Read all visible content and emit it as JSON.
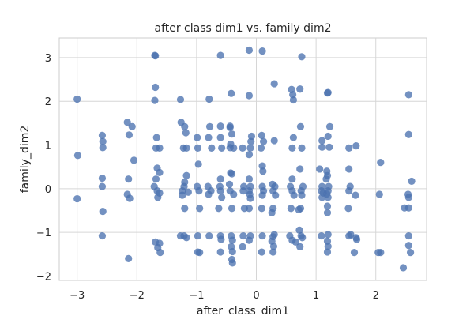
{
  "chart_data": {
    "type": "scatter",
    "title": "after class dim1 vs. family dim2",
    "xlabel": "after_class_dim1",
    "ylabel": "family_dim2",
    "xlim": [
      -3.3,
      2.85
    ],
    "ylim": [
      -2.1,
      3.45
    ],
    "x_ticks": [
      -3,
      -2,
      -1,
      0,
      1,
      2
    ],
    "y_ticks": [
      -2,
      -1,
      0,
      1,
      2,
      3
    ],
    "grid": true,
    "marker_color": "#4c72b0",
    "points": [
      {
        "x": -3.0,
        "y": 2.05
      },
      {
        "x": -2.99,
        "y": 0.76
      },
      {
        "x": -3.0,
        "y": -0.23
      },
      {
        "x": -2.58,
        "y": 1.22
      },
      {
        "x": -2.57,
        "y": 1.08
      },
      {
        "x": -2.57,
        "y": 0.94
      },
      {
        "x": -2.58,
        "y": 0.24
      },
      {
        "x": -2.58,
        "y": 0.05
      },
      {
        "x": -2.57,
        "y": -0.52
      },
      {
        "x": -2.58,
        "y": -1.08
      },
      {
        "x": -2.16,
        "y": 1.52
      },
      {
        "x": -2.08,
        "y": 1.42
      },
      {
        "x": -2.13,
        "y": 1.23
      },
      {
        "x": -2.05,
        "y": 0.65
      },
      {
        "x": -2.14,
        "y": 0.22
      },
      {
        "x": -2.16,
        "y": -0.13
      },
      {
        "x": -2.12,
        "y": -0.22
      },
      {
        "x": -2.14,
        "y": -1.6
      },
      {
        "x": -1.7,
        "y": 3.05
      },
      {
        "x": -1.69,
        "y": 3.04
      },
      {
        "x": -1.69,
        "y": 2.32
      },
      {
        "x": -1.7,
        "y": 2.02
      },
      {
        "x": -1.67,
        "y": 1.17
      },
      {
        "x": -1.62,
        "y": 0.93
      },
      {
        "x": -1.68,
        "y": 0.93
      },
      {
        "x": -1.66,
        "y": 0.47
      },
      {
        "x": -1.62,
        "y": 0.37
      },
      {
        "x": -1.68,
        "y": 0.22
      },
      {
        "x": -1.71,
        "y": 0.05
      },
      {
        "x": -1.66,
        "y": -0.05
      },
      {
        "x": -1.62,
        "y": -0.1
      },
      {
        "x": -1.65,
        "y": -0.2
      },
      {
        "x": -1.69,
        "y": -1.22
      },
      {
        "x": -1.62,
        "y": -1.25
      },
      {
        "x": -1.65,
        "y": -1.35
      },
      {
        "x": -1.61,
        "y": -1.46
      },
      {
        "x": -1.27,
        "y": 2.04
      },
      {
        "x": -1.26,
        "y": 1.52
      },
      {
        "x": -1.2,
        "y": 1.42
      },
      {
        "x": -1.18,
        "y": 1.28
      },
      {
        "x": -1.22,
        "y": 0.93
      },
      {
        "x": -1.17,
        "y": 0.93
      },
      {
        "x": -1.17,
        "y": 0.3
      },
      {
        "x": -1.2,
        "y": 0.15
      },
      {
        "x": -1.21,
        "y": 0.05
      },
      {
        "x": -1.24,
        "y": -0.05
      },
      {
        "x": -1.14,
        "y": -0.08
      },
      {
        "x": -1.24,
        "y": -0.15
      },
      {
        "x": -1.2,
        "y": -0.45
      },
      {
        "x": -1.27,
        "y": -1.08
      },
      {
        "x": -1.21,
        "y": -1.08
      },
      {
        "x": -1.17,
        "y": -1.12
      },
      {
        "x": -0.99,
        "y": 1.17
      },
      {
        "x": -0.98,
        "y": 0.93
      },
      {
        "x": -0.97,
        "y": 0.56
      },
      {
        "x": -0.99,
        "y": 0.05
      },
      {
        "x": -0.96,
        "y": -0.05
      },
      {
        "x": -0.95,
        "y": -0.45
      },
      {
        "x": -0.98,
        "y": -1.08
      },
      {
        "x": -0.98,
        "y": -1.45
      },
      {
        "x": -0.95,
        "y": -1.46
      },
      {
        "x": -0.79,
        "y": 2.05
      },
      {
        "x": -0.78,
        "y": 1.42
      },
      {
        "x": -0.8,
        "y": 1.17
      },
      {
        "x": -0.75,
        "y": 0.93
      },
      {
        "x": -0.81,
        "y": 0.05
      },
      {
        "x": -0.76,
        "y": -0.05
      },
      {
        "x": -0.8,
        "y": -0.13
      },
      {
        "x": -0.79,
        "y": -1.08
      },
      {
        "x": -0.6,
        "y": 3.05
      },
      {
        "x": -0.6,
        "y": 1.43
      },
      {
        "x": -0.6,
        "y": 1.17
      },
      {
        "x": -0.58,
        "y": 0.93
      },
      {
        "x": -0.6,
        "y": 0.22
      },
      {
        "x": -0.61,
        "y": 0.05
      },
      {
        "x": -0.6,
        "y": -0.05
      },
      {
        "x": -0.58,
        "y": -0.2
      },
      {
        "x": -0.63,
        "y": -0.45
      },
      {
        "x": -0.6,
        "y": -1.08
      },
      {
        "x": -0.59,
        "y": -1.16
      },
      {
        "x": -0.6,
        "y": -1.45
      },
      {
        "x": -0.44,
        "y": 1.43
      },
      {
        "x": -0.41,
        "y": 1.25
      },
      {
        "x": -0.38,
        "y": 0.93
      },
      {
        "x": -0.45,
        "y": 0.1
      },
      {
        "x": -0.44,
        "y": -0.05
      },
      {
        "x": -0.38,
        "y": -0.13
      },
      {
        "x": -0.41,
        "y": -0.45
      },
      {
        "x": -0.42,
        "y": -1.08
      },
      {
        "x": -0.4,
        "y": -1.18
      },
      {
        "x": -0.42,
        "y": -1.33
      },
      {
        "x": -0.4,
        "y": -1.44
      },
      {
        "x": -0.41,
        "y": -1.62
      },
      {
        "x": -0.4,
        "y": -1.7
      },
      {
        "x": -0.42,
        "y": 2.18
      },
      {
        "x": -0.43,
        "y": 0.36
      },
      {
        "x": -0.41,
        "y": 0.34
      },
      {
        "x": -0.43,
        "y": 1.02
      },
      {
        "x": -0.44,
        "y": 1.4
      },
      {
        "x": -0.44,
        "y": 0.94
      },
      {
        "x": -0.23,
        "y": 0.93
      },
      {
        "x": -0.21,
        "y": 0.05
      },
      {
        "x": -0.22,
        "y": -0.05
      },
      {
        "x": -0.2,
        "y": -0.45
      },
      {
        "x": -0.22,
        "y": -1.08
      },
      {
        "x": -0.23,
        "y": -1.33
      },
      {
        "x": -0.12,
        "y": 3.17
      },
      {
        "x": -0.12,
        "y": 2.13
      },
      {
        "x": -0.08,
        "y": 1.2
      },
      {
        "x": -0.09,
        "y": 1.08
      },
      {
        "x": -0.1,
        "y": 0.93
      },
      {
        "x": -0.12,
        "y": 0.78
      },
      {
        "x": -0.12,
        "y": 0.22
      },
      {
        "x": -0.1,
        "y": 0.05
      },
      {
        "x": -0.12,
        "y": -0.05
      },
      {
        "x": -0.11,
        "y": -0.13
      },
      {
        "x": -0.1,
        "y": -0.22
      },
      {
        "x": -0.12,
        "y": -0.45
      },
      {
        "x": -0.1,
        "y": -1.08
      },
      {
        "x": -0.12,
        "y": -1.18
      },
      {
        "x": 0.1,
        "y": 3.15
      },
      {
        "x": 0.09,
        "y": 1.22
      },
      {
        "x": 0.12,
        "y": 1.08
      },
      {
        "x": 0.08,
        "y": 0.93
      },
      {
        "x": 0.1,
        "y": 0.52
      },
      {
        "x": 0.11,
        "y": 0.4
      },
      {
        "x": 0.1,
        "y": 0.05
      },
      {
        "x": 0.12,
        "y": -0.05
      },
      {
        "x": 0.1,
        "y": -0.15
      },
      {
        "x": 0.09,
        "y": -0.45
      },
      {
        "x": 0.1,
        "y": -1.08
      },
      {
        "x": 0.09,
        "y": -1.45
      },
      {
        "x": 0.3,
        "y": 2.4
      },
      {
        "x": 0.3,
        "y": 1.1
      },
      {
        "x": 0.27,
        "y": 0.1
      },
      {
        "x": 0.31,
        "y": 0.05
      },
      {
        "x": 0.28,
        "y": -0.05
      },
      {
        "x": 0.32,
        "y": -0.15
      },
      {
        "x": 0.28,
        "y": -0.45
      },
      {
        "x": 0.26,
        "y": -0.55
      },
      {
        "x": 0.3,
        "y": -1.05
      },
      {
        "x": 0.28,
        "y": -1.1
      },
      {
        "x": 0.26,
        "y": -1.2
      },
      {
        "x": 0.29,
        "y": -1.32
      },
      {
        "x": 0.28,
        "y": -1.45
      },
      {
        "x": 0.59,
        "y": 2.27
      },
      {
        "x": 0.61,
        "y": 2.15
      },
      {
        "x": 0.62,
        "y": 2.03
      },
      {
        "x": 0.62,
        "y": 1.17
      },
      {
        "x": 0.6,
        "y": 0.93
      },
      {
        "x": 0.6,
        "y": 0.22
      },
      {
        "x": 0.57,
        "y": 0.05
      },
      {
        "x": 0.6,
        "y": -0.05
      },
      {
        "x": 0.63,
        "y": -0.15
      },
      {
        "x": 0.58,
        "y": -0.45
      },
      {
        "x": 0.56,
        "y": -1.08
      },
      {
        "x": 0.6,
        "y": -1.18
      },
      {
        "x": 0.66,
        "y": -1.22
      },
      {
        "x": 0.76,
        "y": 3.02
      },
      {
        "x": 0.73,
        "y": 2.28
      },
      {
        "x": 0.74,
        "y": 1.42
      },
      {
        "x": 0.76,
        "y": 0.93
      },
      {
        "x": 0.73,
        "y": 0.45
      },
      {
        "x": 0.78,
        "y": 0.05
      },
      {
        "x": 0.75,
        "y": -0.05
      },
      {
        "x": 0.76,
        "y": -0.15
      },
      {
        "x": 0.74,
        "y": -0.45
      },
      {
        "x": 0.71,
        "y": -0.48
      },
      {
        "x": 0.72,
        "y": -0.95
      },
      {
        "x": 0.75,
        "y": -1.08
      },
      {
        "x": 0.77,
        "y": -1.12
      },
      {
        "x": 0.73,
        "y": -1.33
      },
      {
        "x": 1.1,
        "y": 1.1
      },
      {
        "x": 1.1,
        "y": 0.95
      },
      {
        "x": 1.06,
        "y": 0.45
      },
      {
        "x": 1.1,
        "y": 0.05
      },
      {
        "x": 1.09,
        "y": -0.05
      },
      {
        "x": 1.12,
        "y": -0.1
      },
      {
        "x": 1.1,
        "y": -0.2
      },
      {
        "x": 1.09,
        "y": -1.08
      },
      {
        "x": 1.2,
        "y": 2.2
      },
      {
        "x": 1.19,
        "y": 2.19
      },
      {
        "x": 1.23,
        "y": 1.42
      },
      {
        "x": 1.2,
        "y": 1.2
      },
      {
        "x": 1.22,
        "y": 0.95
      },
      {
        "x": 1.18,
        "y": 0.4
      },
      {
        "x": 1.19,
        "y": 0.3
      },
      {
        "x": 1.17,
        "y": 0.22
      },
      {
        "x": 1.21,
        "y": 0.05
      },
      {
        "x": 1.2,
        "y": -0.05
      },
      {
        "x": 1.18,
        "y": -0.12
      },
      {
        "x": 1.2,
        "y": -0.2
      },
      {
        "x": 1.19,
        "y": -0.4
      },
      {
        "x": 1.19,
        "y": -0.55
      },
      {
        "x": 1.2,
        "y": -1.05
      },
      {
        "x": 1.19,
        "y": -1.2
      },
      {
        "x": 1.2,
        "y": -1.32
      },
      {
        "x": 1.19,
        "y": -1.45
      },
      {
        "x": 1.55,
        "y": 0.93
      },
      {
        "x": 1.55,
        "y": 0.45
      },
      {
        "x": 1.57,
        "y": 0.05
      },
      {
        "x": 1.55,
        "y": -0.05
      },
      {
        "x": 1.54,
        "y": -0.45
      },
      {
        "x": 1.55,
        "y": -1.08
      },
      {
        "x": 1.58,
        "y": -1.05
      },
      {
        "x": 1.67,
        "y": 0.98
      },
      {
        "x": 1.66,
        "y": -0.15
      },
      {
        "x": 1.67,
        "y": -1.12
      },
      {
        "x": 1.64,
        "y": -1.46
      },
      {
        "x": 1.68,
        "y": -1.16
      },
      {
        "x": 2.08,
        "y": 0.6
      },
      {
        "x": 2.06,
        "y": -0.13
      },
      {
        "x": 2.08,
        "y": -1.46
      },
      {
        "x": 2.04,
        "y": -1.46
      },
      {
        "x": 2.48,
        "y": -0.44
      },
      {
        "x": 2.46,
        "y": -1.81
      },
      {
        "x": 2.55,
        "y": 2.15
      },
      {
        "x": 2.55,
        "y": 1.24
      },
      {
        "x": 2.54,
        "y": -0.13
      },
      {
        "x": 2.55,
        "y": -0.2
      },
      {
        "x": 2.55,
        "y": -0.44
      },
      {
        "x": 2.55,
        "y": -1.08
      },
      {
        "x": 2.55,
        "y": -1.3
      },
      {
        "x": 2.58,
        "y": -1.46
      },
      {
        "x": 2.6,
        "y": 0.17
      }
    ]
  }
}
